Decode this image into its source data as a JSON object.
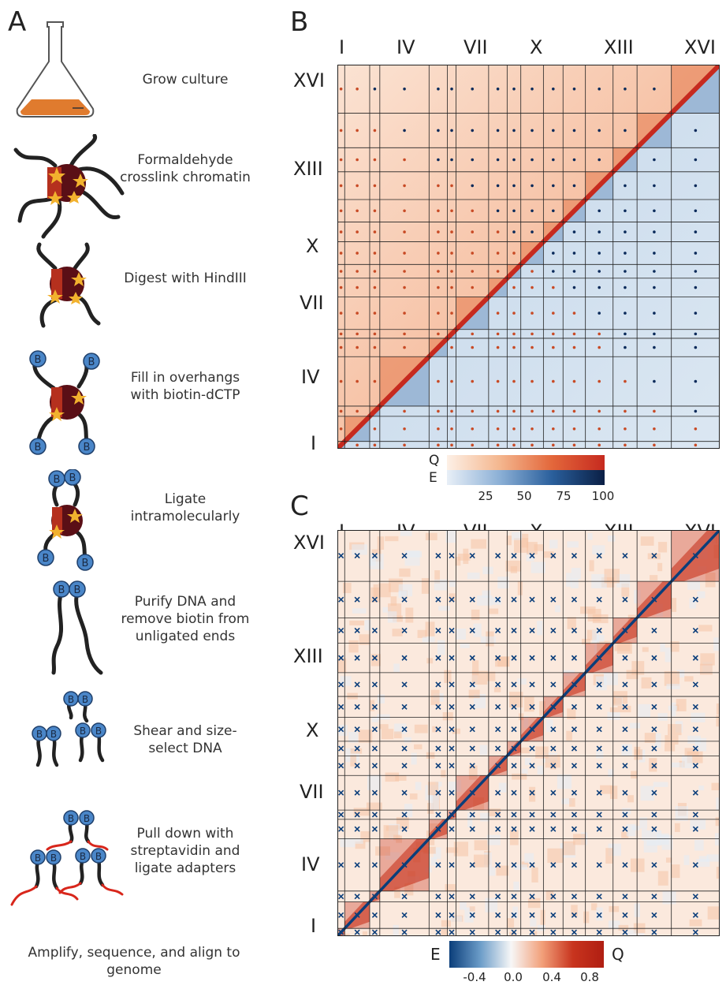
{
  "panels": {
    "a": "A",
    "b": "B",
    "c": "C"
  },
  "protocol_steps": [
    {
      "icon": "flask-icon",
      "label": "Grow culture"
    },
    {
      "icon": "crosslinked-chromatin-icon",
      "label": "Formaldehyde crosslink chromatin"
    },
    {
      "icon": "digested-chromatin-icon",
      "label": "Digest with HindIII"
    },
    {
      "icon": "biotin-fill-icon",
      "label": "Fill in overhangs with biotin-dCTP"
    },
    {
      "icon": "ligation-icon",
      "label": "Ligate intramolecularly"
    },
    {
      "icon": "purified-dna-icon",
      "label": "Purify DNA and remove biotin from unligated ends"
    },
    {
      "icon": "sheared-dna-icon",
      "label": "Shear and size-select DNA"
    },
    {
      "icon": "pulldown-icon",
      "label": "Pull down with streptavidin and ligate adapters"
    }
  ],
  "final_step": "Amplify, sequence, and align to genome",
  "biotin_label": "B",
  "chromosome_labels": [
    "I",
    "IV",
    "VII",
    "X",
    "XIII",
    "XVI"
  ],
  "chromosome_boundaries_fraction": [
    0,
    0.0191,
    0.0845,
    0.111,
    0.2398,
    0.2876,
    0.3105,
    0.3956,
    0.444,
    0.4798,
    0.5389,
    0.5902,
    0.6488,
    0.7211,
    0.7838,
    0.8736,
    1.0
  ],
  "heatmap_b": {
    "upper_label": "Q",
    "lower_label": "E",
    "colorbar_ticks": [
      "25",
      "50",
      "75",
      "100"
    ],
    "colors": {
      "q_low": "#fbe3d3",
      "q_high": "#c62a1f",
      "e_low": "#dbe7f2",
      "e_high": "#0a1f45"
    }
  },
  "heatmap_c": {
    "left_label": "E",
    "right_label": "Q",
    "colorbar_ticks": [
      "-0.4",
      "0.0",
      "0.4",
      "0.8"
    ],
    "colors": {
      "neg": "#0b3e7a",
      "zero": "#f7f7f7",
      "pos": "#c8341e"
    }
  }
}
